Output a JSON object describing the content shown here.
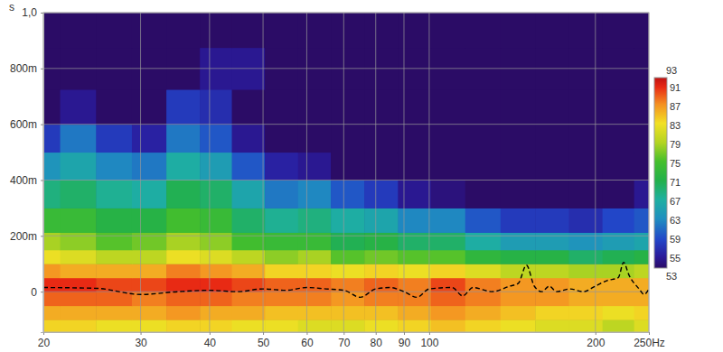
{
  "chart_data": {
    "type": "heatmap",
    "y_label": "s",
    "log": "x",
    "grid": true,
    "xlim": [
      20,
      250
    ],
    "xticks": [
      20,
      30,
      40,
      50,
      60,
      70,
      80,
      90,
      100,
      200,
      {
        "value": 250,
        "label": "250Hz"
      }
    ],
    "ylim": [
      -145,
      1000
    ],
    "yticks": [
      0,
      {
        "value": 200,
        "label": "200m"
      },
      {
        "value": 400,
        "label": "400m"
      },
      {
        "value": 600,
        "label": "600m"
      },
      {
        "value": 800,
        "label": "800m"
      },
      {
        "value": 1000,
        "label": "1,0"
      }
    ],
    "zlim": [
      53,
      93
    ],
    "zticks": [
      53,
      55,
      59,
      63,
      67,
      71,
      75,
      79,
      83,
      87,
      91,
      93
    ],
    "cells": {
      "x": [
        20,
        23,
        27,
        31,
        36,
        41,
        47,
        54,
        62,
        71,
        82,
        94,
        108,
        125,
        145,
        167,
        192,
        221,
        250
      ],
      "y": [
        -125,
        -75,
        -25,
        25,
        75,
        125,
        175,
        250,
        350,
        450,
        550,
        650,
        800,
        950
      ],
      "z": [
        [
          84,
          84,
          83,
          83,
          84,
          84,
          83,
          83,
          82,
          82,
          83,
          84,
          85,
          84,
          83,
          82,
          82,
          80,
          82
        ],
        [
          86,
          86,
          86,
          86,
          87,
          86,
          86,
          85,
          85,
          85,
          85,
          86,
          87,
          86,
          85,
          84,
          84,
          83,
          84
        ],
        [
          89,
          89,
          89,
          88,
          89,
          89,
          88,
          88,
          88,
          87,
          88,
          88,
          89,
          88,
          87,
          87,
          86,
          86,
          86
        ],
        [
          91,
          91,
          90,
          90,
          91,
          91,
          90,
          89,
          89,
          88,
          89,
          88,
          90,
          88,
          87,
          87,
          86,
          86,
          86
        ],
        [
          87,
          86,
          86,
          86,
          88,
          87,
          86,
          84,
          84,
          83,
          84,
          83,
          84,
          82,
          80,
          80,
          79,
          79,
          80
        ],
        [
          83,
          82,
          80,
          80,
          83,
          82,
          80,
          78,
          79,
          76,
          77,
          76,
          76,
          73,
          72,
          72,
          70,
          71,
          72
        ],
        [
          79,
          78,
          76,
          77,
          79,
          78,
          75,
          74,
          74,
          71,
          72,
          70,
          70,
          67,
          65,
          65,
          64,
          65,
          66
        ],
        [
          74,
          74,
          72,
          72,
          75,
          74,
          70,
          68,
          69,
          67,
          66,
          63,
          63,
          60,
          58,
          58,
          57,
          59,
          60
        ],
        [
          69,
          70,
          68,
          67,
          71,
          70,
          66,
          62,
          63,
          60,
          58,
          55,
          54,
          52,
          52,
          51,
          50,
          52,
          55
        ],
        [
          64,
          66,
          63,
          62,
          67,
          65,
          60,
          56,
          55,
          52,
          50,
          50,
          50,
          50,
          50,
          50,
          50,
          50,
          50
        ],
        [
          58,
          62,
          58,
          56,
          62,
          60,
          55,
          50,
          50,
          50,
          50,
          50,
          50,
          50,
          50,
          50,
          50,
          50,
          50
        ],
        [
          50,
          55,
          52,
          50,
          58,
          57,
          50,
          50,
          50,
          50,
          50,
          50,
          50,
          50,
          50,
          50,
          50,
          50,
          50
        ],
        [
          50,
          50,
          50,
          50,
          52,
          55,
          55,
          50,
          50,
          50,
          50,
          50,
          50,
          50,
          50,
          50,
          50,
          50,
          50
        ],
        [
          50,
          50,
          50,
          50,
          50,
          50,
          50,
          50,
          50,
          50,
          50,
          50,
          50,
          50,
          50,
          50,
          50,
          50,
          50
        ]
      ]
    },
    "series": [
      {
        "type": "line",
        "color": "#000000",
        "line_style": "dashed",
        "x": [
          20,
          25,
          30,
          35,
          40,
          45,
          50,
          55,
          60,
          65,
          70,
          75,
          80,
          85,
          90,
          95,
          100,
          110,
          115,
          120,
          130,
          140,
          145,
          150,
          155,
          160,
          165,
          170,
          180,
          190,
          200,
          210,
          220,
          225,
          230,
          240,
          245,
          250
        ],
        "values": [
          15,
          12,
          -10,
          0,
          5,
          0,
          10,
          5,
          15,
          10,
          5,
          -20,
          10,
          15,
          0,
          -20,
          10,
          15,
          -15,
          15,
          0,
          20,
          30,
          95,
          20,
          0,
          20,
          0,
          10,
          0,
          20,
          40,
          50,
          105,
          60,
          10,
          -10,
          10
        ]
      }
    ]
  }
}
